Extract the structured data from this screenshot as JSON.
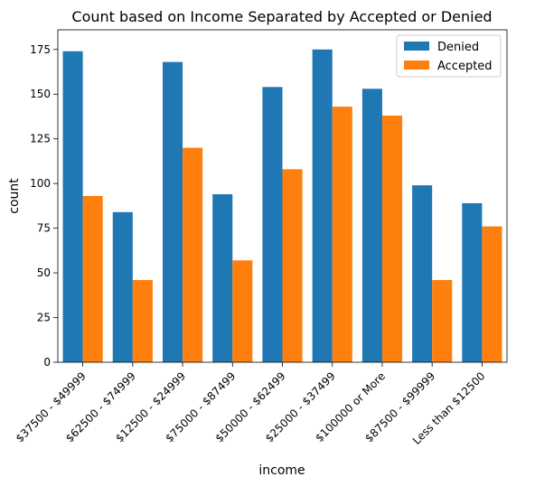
{
  "chart_data": {
    "type": "bar",
    "title": "Count based on Income Separated by Accepted or Denied",
    "xlabel": "income",
    "ylabel": "count",
    "ylim": [
      0,
      186
    ],
    "yticks": [
      0,
      25,
      50,
      75,
      100,
      125,
      150,
      175
    ],
    "grid": false,
    "legend_position": "top-right",
    "categories": [
      "$37500 - $49999",
      "$62500 - $74999",
      "$12500 - $24999",
      "$75000 - $87499",
      "$50000 - $62499",
      "$25000 - $37499",
      "$100000 or More",
      "$87500 - $99999",
      "Less than $12500"
    ],
    "series": [
      {
        "name": "Denied",
        "color": "#1f77b4",
        "values": [
          174,
          84,
          168,
          94,
          154,
          175,
          153,
          99,
          89
        ]
      },
      {
        "name": "Accepted",
        "color": "#ff7f0e",
        "values": [
          93,
          46,
          120,
          57,
          108,
          143,
          138,
          46,
          76
        ]
      }
    ]
  }
}
